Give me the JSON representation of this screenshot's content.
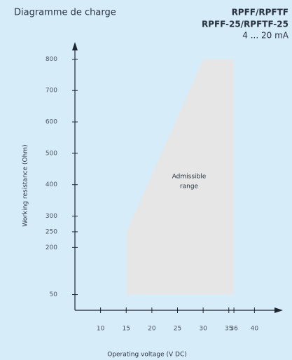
{
  "chart_data": {
    "type": "area",
    "title": "Diagramme de charge",
    "subtitle": [
      "RPFF/RPFTF",
      "RPFF-25/RPFTF-25",
      "4 ... 20 mA"
    ],
    "xlabel": "Operating voltage  (V DC)",
    "ylabel": "Working resistance  (Ohm)",
    "annotation": [
      "Admissible",
      "range"
    ],
    "series": [
      {
        "x": [
          15,
          15,
          30,
          36,
          36
        ],
        "values": [
          50,
          250,
          800,
          800,
          50
        ],
        "color": "#e6e6e6"
      }
    ],
    "xlim": [
      5,
      45
    ],
    "xticks": [
      10,
      15,
      20,
      25,
      30,
      35,
      36,
      40
    ],
    "ylim": [
      0,
      850
    ],
    "yticks": [
      50,
      200,
      250,
      300,
      400,
      500,
      600,
      700,
      800
    ]
  }
}
